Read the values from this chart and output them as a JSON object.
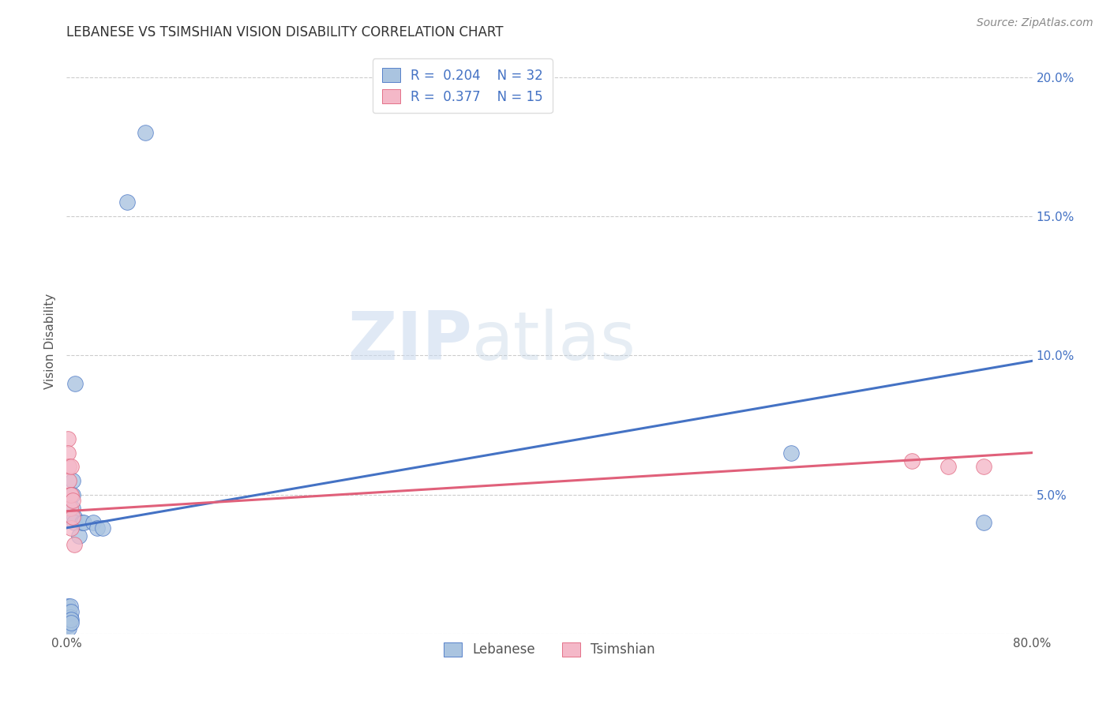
{
  "title": "LEBANESE VS TSIMSHIAN VISION DISABILITY CORRELATION CHART",
  "source": "Source: ZipAtlas.com",
  "ylabel": "Vision Disability",
  "lebanese_color": "#aac4e0",
  "tsimshian_color": "#f4b8c8",
  "line_lebanese_color": "#4472c4",
  "line_tsimshian_color": "#e0607a",
  "xlim": [
    0.0,
    0.8
  ],
  "ylim": [
    0.0,
    0.21
  ],
  "lebanese_points": [
    [
      0.001,
      0.01
    ],
    [
      0.001,
      0.007
    ],
    [
      0.001,
      0.005
    ],
    [
      0.001,
      0.004
    ],
    [
      0.001,
      0.003
    ],
    [
      0.002,
      0.008
    ],
    [
      0.002,
      0.006
    ],
    [
      0.002,
      0.004
    ],
    [
      0.002,
      0.003
    ],
    [
      0.002,
      0.002
    ],
    [
      0.003,
      0.01
    ],
    [
      0.003,
      0.006
    ],
    [
      0.003,
      0.005
    ],
    [
      0.004,
      0.008
    ],
    [
      0.004,
      0.005
    ],
    [
      0.004,
      0.004
    ],
    [
      0.005,
      0.055
    ],
    [
      0.005,
      0.05
    ],
    [
      0.005,
      0.045
    ],
    [
      0.006,
      0.042
    ],
    [
      0.006,
      0.04
    ],
    [
      0.007,
      0.09
    ],
    [
      0.01,
      0.035
    ],
    [
      0.013,
      0.04
    ],
    [
      0.014,
      0.04
    ],
    [
      0.022,
      0.04
    ],
    [
      0.025,
      0.038
    ],
    [
      0.03,
      0.038
    ],
    [
      0.05,
      0.155
    ],
    [
      0.065,
      0.18
    ],
    [
      0.6,
      0.065
    ],
    [
      0.76,
      0.04
    ]
  ],
  "tsimshian_points": [
    [
      0.001,
      0.07
    ],
    [
      0.001,
      0.065
    ],
    [
      0.002,
      0.06
    ],
    [
      0.002,
      0.055
    ],
    [
      0.003,
      0.05
    ],
    [
      0.003,
      0.045
    ],
    [
      0.004,
      0.06
    ],
    [
      0.004,
      0.05
    ],
    [
      0.004,
      0.038
    ],
    [
      0.005,
      0.048
    ],
    [
      0.005,
      0.042
    ],
    [
      0.006,
      0.032
    ],
    [
      0.7,
      0.062
    ],
    [
      0.73,
      0.06
    ],
    [
      0.76,
      0.06
    ]
  ],
  "leb_line": [
    [
      0.0,
      0.038
    ],
    [
      0.8,
      0.098
    ]
  ],
  "tsim_line": [
    [
      0.0,
      0.044
    ],
    [
      0.8,
      0.065
    ]
  ],
  "watermark_zip": "ZIP",
  "watermark_atlas": "atlas",
  "right_ytick_color": "#4472c4",
  "right_ytick_labels": [
    "",
    "5.0%",
    "10.0%",
    "15.0%",
    "20.0%"
  ],
  "yticks": [
    0.0,
    0.05,
    0.1,
    0.15,
    0.2
  ]
}
